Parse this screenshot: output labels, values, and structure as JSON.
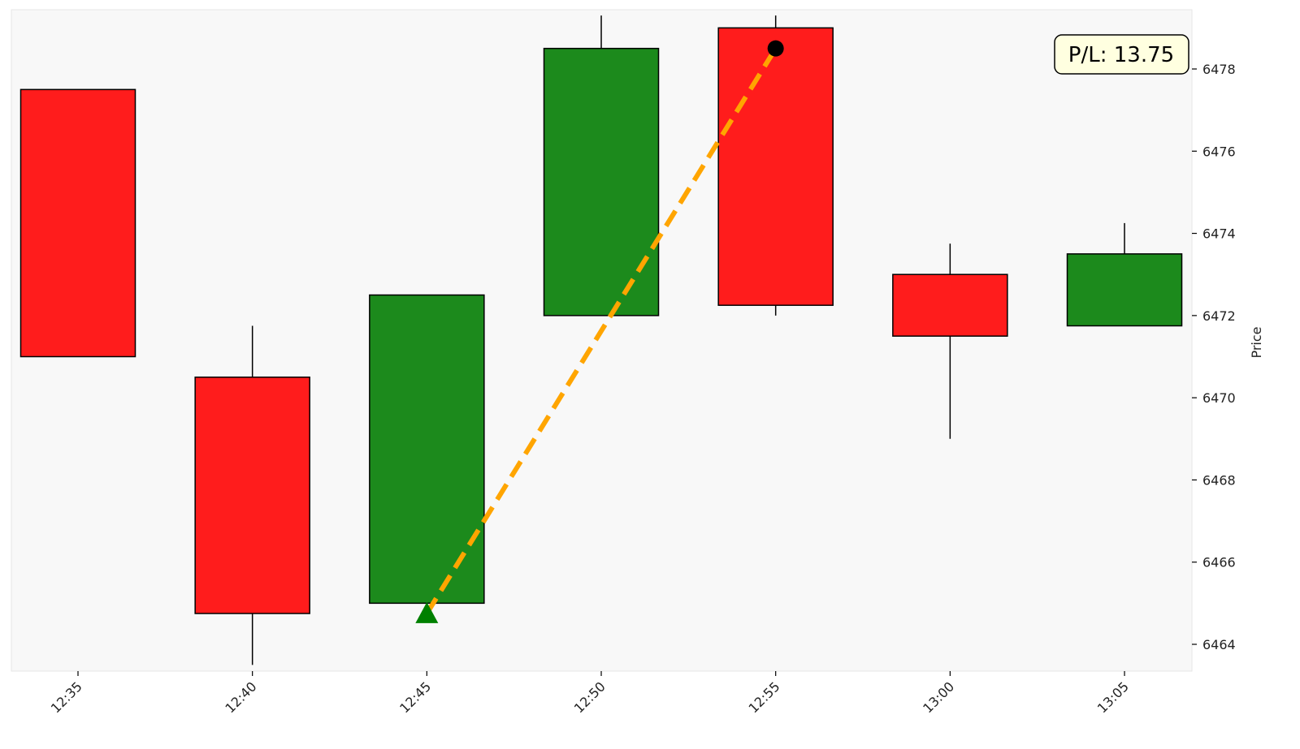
{
  "chart_data": {
    "type": "candlestick",
    "title": "",
    "xlabel": "",
    "ylabel": "Price",
    "ylim": [
      6463.5,
      6479.3
    ],
    "yticks": [
      6464,
      6466,
      6468,
      6470,
      6472,
      6474,
      6476,
      6478
    ],
    "y_axis_side": "right",
    "grid": false,
    "categories": [
      "12:35",
      "12:40",
      "12:45",
      "12:50",
      "12:55",
      "13:00",
      "13:05"
    ],
    "candles": [
      {
        "time": "12:35",
        "open": 6477.5,
        "high": 6477.5,
        "low": 6471.0,
        "close": 6471.0
      },
      {
        "time": "12:40",
        "open": 6470.5,
        "high": 6471.75,
        "low": 6463.5,
        "close": 6464.75
      },
      {
        "time": "12:45",
        "open": 6465.0,
        "high": 6472.5,
        "low": 6465.0,
        "close": 6472.5
      },
      {
        "time": "12:50",
        "open": 6472.0,
        "high": 6479.3,
        "low": 6472.0,
        "close": 6478.5
      },
      {
        "time": "12:55",
        "open": 6479.0,
        "high": 6479.3,
        "low": 6472.0,
        "close": 6472.25
      },
      {
        "time": "13:00",
        "open": 6473.0,
        "high": 6473.75,
        "low": 6469.0,
        "close": 6471.5
      },
      {
        "time": "13:05",
        "open": 6471.75,
        "high": 6474.25,
        "low": 6471.75,
        "close": 6473.5
      }
    ],
    "trade": {
      "entry": {
        "time": "12:45",
        "price": 6464.75,
        "marker": "triangle-up"
      },
      "exit": {
        "time": "12:55",
        "price": 6478.5,
        "marker": "circle"
      }
    },
    "annotation": {
      "text": "P/L: 13.75"
    },
    "colors": {
      "bull": "#1c8a1c",
      "bear": "#ff1c1c",
      "edge": "#000000",
      "trade_line": "#ffa500",
      "entry_marker": "#008000",
      "exit_marker": "#000000",
      "plot_background": "#f8f8f8",
      "annotation_background": "#ffffe0"
    }
  }
}
